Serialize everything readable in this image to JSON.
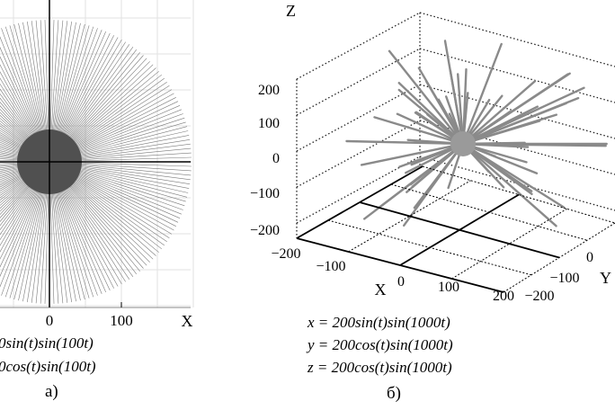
{
  "chart_data": [
    {
      "type": "line",
      "panel_label": "а)",
      "xlabel": "X",
      "x_ticks": [
        "0",
        "100"
      ],
      "equations": [
        "0sin(t)sin(100t)",
        "0cos(t)sin(100t)"
      ],
      "grid": true,
      "description_values": {
        "xlim": [
          -200,
          200
        ],
        "ylim": [
          -200,
          200
        ],
        "rays": 200
      }
    },
    {
      "type": "line",
      "panel_label": "б)",
      "xlabel": "X",
      "ylabel": "Y",
      "zlabel": "Z",
      "z_ticks": [
        "200",
        "100",
        "0",
        "−100",
        "−200"
      ],
      "x_ticks": [
        "−200",
        "−100",
        "0",
        "100",
        "200"
      ],
      "y_ticks": [
        "−200",
        "−100",
        "0"
      ],
      "equations": [
        "x = 200sin(t)sin(1000t)",
        "y = 200cos(t)sin(1000t)",
        "z = 200cos(t)sin(1000t)"
      ],
      "grid": true,
      "description_values": {
        "xlim": [
          -200,
          200
        ],
        "ylim": [
          -200,
          200
        ],
        "zlim": [
          -200,
          200
        ],
        "rays": 60
      }
    }
  ]
}
